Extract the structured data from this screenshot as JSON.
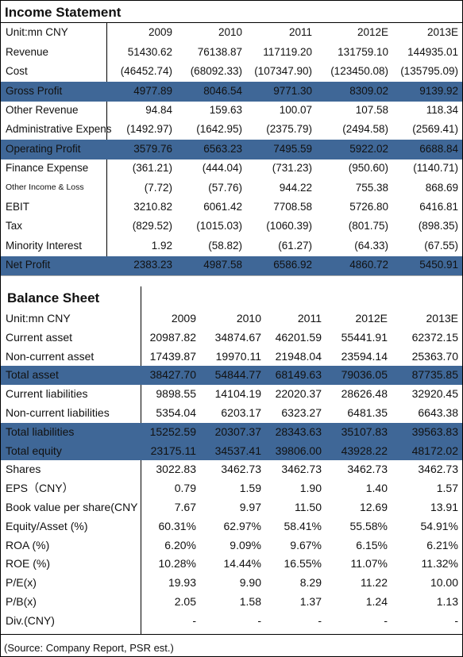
{
  "income_statement": {
    "title": "Income Statement",
    "header": [
      "Unit:mn CNY",
      "2009",
      "2010",
      "2011",
      "2012E",
      "2013E"
    ],
    "rows": [
      [
        "Revenue",
        "51430.62",
        "76138.87",
        "117119.20",
        "131759.10",
        "144935.01"
      ],
      [
        "Cost",
        "(46452.74)",
        "(68092.33)",
        "(107347.90)",
        "(123450.08)",
        "(135795.09)"
      ],
      [
        "Gross Profit",
        "4977.89",
        "8046.54",
        "9771.30",
        "8309.02",
        "9139.92"
      ],
      [
        "Other Revenue",
        "94.84",
        "159.63",
        "100.07",
        "107.58",
        "118.34"
      ],
      [
        "Administrative Expens",
        "(1492.97)",
        "(1642.95)",
        "(2375.79)",
        "(2494.58)",
        "(2569.41)"
      ],
      [
        "Operating Profit",
        "3579.76",
        "6563.23",
        "7495.59",
        "5922.02",
        "6688.84"
      ],
      [
        "Finance Expense",
        "(361.21)",
        "(444.04)",
        "(731.23)",
        "(950.60)",
        "(1140.71)"
      ],
      [
        "Other Income & Loss",
        "(7.72)",
        "(57.76)",
        "944.22",
        "755.38",
        "868.69"
      ],
      [
        "EBIT",
        "3210.82",
        "6061.42",
        "7708.58",
        "5726.80",
        "6416.81"
      ],
      [
        "Tax",
        "(829.52)",
        "(1015.03)",
        "(1060.39)",
        "(801.75)",
        "(898.35)"
      ],
      [
        "Minority Interest",
        "1.92",
        "(58.82)",
        "(61.27)",
        "(64.33)",
        "(67.55)"
      ],
      [
        "Net Profit",
        "2383.23",
        "4987.58",
        "6586.92",
        "4860.72",
        "5450.91"
      ]
    ]
  },
  "balance_sheet": {
    "title": "Balance Sheet",
    "header": [
      "Unit:mn CNY",
      "2009",
      "2010",
      "2011",
      "2012E",
      "2013E"
    ],
    "rows": [
      [
        "Current asset",
        "20987.82",
        "34874.67",
        "46201.59",
        "55441.91",
        "62372.15"
      ],
      [
        "Non-current asset",
        "17439.87",
        "19970.11",
        "21948.04",
        "23594.14",
        "25363.70"
      ],
      [
        "Total asset",
        "38427.70",
        "54844.77",
        "68149.63",
        "79036.05",
        "87735.85"
      ],
      [
        "Current liabilities",
        "9898.55",
        "14104.19",
        "22020.37",
        "28626.48",
        "32920.45"
      ],
      [
        "Non-current liabilities",
        "5354.04",
        "6203.17",
        "6323.27",
        "6481.35",
        "6643.38"
      ],
      [
        "Total liabilities",
        "15252.59",
        "20307.37",
        "28343.63",
        "35107.83",
        "39563.83"
      ],
      [
        "Total equity",
        "23175.11",
        "34537.41",
        "39806.00",
        "43928.22",
        "48172.02"
      ],
      [
        "Shares",
        "3022.83",
        "3462.73",
        "3462.73",
        "3462.73",
        "3462.73"
      ],
      [
        "EPS（CNY）",
        "0.79",
        "1.59",
        "1.90",
        "1.40",
        "1.57"
      ],
      [
        "Book value per share(CNY",
        "7.67",
        "9.97",
        "11.50",
        "12.69",
        "13.91"
      ],
      [
        "Equity/Asset (%)",
        "60.31%",
        "62.97%",
        "58.41%",
        "55.58%",
        "54.91%"
      ],
      [
        "ROA (%)",
        "6.20%",
        "9.09%",
        "9.67%",
        "6.15%",
        "6.21%"
      ],
      [
        "ROE (%)",
        "10.28%",
        "14.44%",
        "16.55%",
        "11.07%",
        "11.32%"
      ],
      [
        "P/E(x)",
        "19.93",
        "9.90",
        "8.29",
        "11.22",
        "10.00"
      ],
      [
        "P/B(x)",
        "2.05",
        "1.58",
        "1.37",
        "1.24",
        "1.13"
      ],
      [
        "Div.(CNY)",
        "-",
        "-",
        "-",
        "-",
        "-"
      ]
    ]
  },
  "source": "(Source: Company Report, PSR est.)"
}
